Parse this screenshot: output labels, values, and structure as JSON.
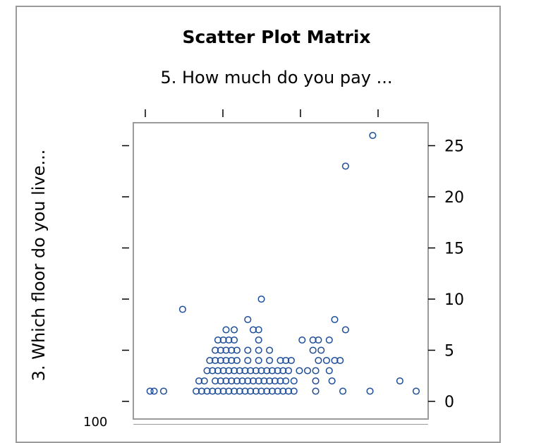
{
  "chart_data": {
    "type": "scatter",
    "title": "Scatter Plot Matrix",
    "x_variable_label": "5. How much do you pay ...",
    "y_variable_label": "3. Which floor do you live...",
    "ylim": [
      0,
      27
    ],
    "yticks": [
      0,
      5,
      10,
      15,
      20,
      25
    ],
    "xlim": [
      0,
      1
    ],
    "x_tick_count": 4,
    "clipped_tick_label": "100",
    "grid": false,
    "marker": "open-circle",
    "colors": {
      "marker": "#1f4e9a",
      "frame": "#9a9a9a"
    },
    "points": [
      {
        "x": 0.02,
        "y": 1
      },
      {
        "x": 0.035,
        "y": 1
      },
      {
        "x": 0.07,
        "y": 1
      },
      {
        "x": 0.14,
        "y": 9
      },
      {
        "x": 0.19,
        "y": 1
      },
      {
        "x": 0.21,
        "y": 1
      },
      {
        "x": 0.23,
        "y": 1
      },
      {
        "x": 0.25,
        "y": 1
      },
      {
        "x": 0.27,
        "y": 1
      },
      {
        "x": 0.29,
        "y": 1
      },
      {
        "x": 0.31,
        "y": 1
      },
      {
        "x": 0.33,
        "y": 1
      },
      {
        "x": 0.35,
        "y": 1
      },
      {
        "x": 0.37,
        "y": 1
      },
      {
        "x": 0.39,
        "y": 1
      },
      {
        "x": 0.41,
        "y": 1
      },
      {
        "x": 0.43,
        "y": 1
      },
      {
        "x": 0.45,
        "y": 1
      },
      {
        "x": 0.47,
        "y": 1
      },
      {
        "x": 0.49,
        "y": 1
      },
      {
        "x": 0.51,
        "y": 1
      },
      {
        "x": 0.53,
        "y": 1
      },
      {
        "x": 0.55,
        "y": 1
      },
      {
        "x": 0.2,
        "y": 2
      },
      {
        "x": 0.22,
        "y": 2
      },
      {
        "x": 0.26,
        "y": 2
      },
      {
        "x": 0.28,
        "y": 2
      },
      {
        "x": 0.3,
        "y": 2
      },
      {
        "x": 0.32,
        "y": 2
      },
      {
        "x": 0.34,
        "y": 2
      },
      {
        "x": 0.36,
        "y": 2
      },
      {
        "x": 0.38,
        "y": 2
      },
      {
        "x": 0.4,
        "y": 2
      },
      {
        "x": 0.42,
        "y": 2
      },
      {
        "x": 0.44,
        "y": 2
      },
      {
        "x": 0.46,
        "y": 2
      },
      {
        "x": 0.48,
        "y": 2
      },
      {
        "x": 0.5,
        "y": 2
      },
      {
        "x": 0.52,
        "y": 2
      },
      {
        "x": 0.55,
        "y": 2
      },
      {
        "x": 0.23,
        "y": 3
      },
      {
        "x": 0.25,
        "y": 3
      },
      {
        "x": 0.27,
        "y": 3
      },
      {
        "x": 0.29,
        "y": 3
      },
      {
        "x": 0.31,
        "y": 3
      },
      {
        "x": 0.33,
        "y": 3
      },
      {
        "x": 0.35,
        "y": 3
      },
      {
        "x": 0.37,
        "y": 3
      },
      {
        "x": 0.39,
        "y": 3
      },
      {
        "x": 0.41,
        "y": 3
      },
      {
        "x": 0.43,
        "y": 3
      },
      {
        "x": 0.45,
        "y": 3
      },
      {
        "x": 0.47,
        "y": 3
      },
      {
        "x": 0.49,
        "y": 3
      },
      {
        "x": 0.51,
        "y": 3
      },
      {
        "x": 0.53,
        "y": 3
      },
      {
        "x": 0.57,
        "y": 3
      },
      {
        "x": 0.6,
        "y": 3
      },
      {
        "x": 0.24,
        "y": 4
      },
      {
        "x": 0.26,
        "y": 4
      },
      {
        "x": 0.28,
        "y": 4
      },
      {
        "x": 0.3,
        "y": 4
      },
      {
        "x": 0.32,
        "y": 4
      },
      {
        "x": 0.34,
        "y": 4
      },
      {
        "x": 0.38,
        "y": 4
      },
      {
        "x": 0.42,
        "y": 4
      },
      {
        "x": 0.46,
        "y": 4
      },
      {
        "x": 0.5,
        "y": 4
      },
      {
        "x": 0.52,
        "y": 4
      },
      {
        "x": 0.54,
        "y": 4
      },
      {
        "x": 0.26,
        "y": 5
      },
      {
        "x": 0.28,
        "y": 5
      },
      {
        "x": 0.3,
        "y": 5
      },
      {
        "x": 0.32,
        "y": 5
      },
      {
        "x": 0.34,
        "y": 5
      },
      {
        "x": 0.38,
        "y": 5
      },
      {
        "x": 0.42,
        "y": 5
      },
      {
        "x": 0.46,
        "y": 5
      },
      {
        "x": 0.27,
        "y": 6
      },
      {
        "x": 0.29,
        "y": 6
      },
      {
        "x": 0.31,
        "y": 6
      },
      {
        "x": 0.33,
        "y": 6
      },
      {
        "x": 0.42,
        "y": 6
      },
      {
        "x": 0.3,
        "y": 7
      },
      {
        "x": 0.33,
        "y": 7
      },
      {
        "x": 0.4,
        "y": 7
      },
      {
        "x": 0.42,
        "y": 7
      },
      {
        "x": 0.38,
        "y": 8
      },
      {
        "x": 0.43,
        "y": 10
      },
      {
        "x": 0.58,
        "y": 6
      },
      {
        "x": 0.62,
        "y": 6
      },
      {
        "x": 0.64,
        "y": 6
      },
      {
        "x": 0.68,
        "y": 6
      },
      {
        "x": 0.62,
        "y": 5
      },
      {
        "x": 0.65,
        "y": 5
      },
      {
        "x": 0.64,
        "y": 4
      },
      {
        "x": 0.67,
        "y": 4
      },
      {
        "x": 0.7,
        "y": 4
      },
      {
        "x": 0.72,
        "y": 4
      },
      {
        "x": 0.63,
        "y": 3
      },
      {
        "x": 0.68,
        "y": 3
      },
      {
        "x": 0.63,
        "y": 2
      },
      {
        "x": 0.69,
        "y": 2
      },
      {
        "x": 0.63,
        "y": 1
      },
      {
        "x": 0.73,
        "y": 1
      },
      {
        "x": 0.7,
        "y": 8
      },
      {
        "x": 0.74,
        "y": 7
      },
      {
        "x": 0.74,
        "y": 23
      },
      {
        "x": 0.84,
        "y": 26
      },
      {
        "x": 0.83,
        "y": 1
      },
      {
        "x": 0.94,
        "y": 2
      },
      {
        "x": 1.0,
        "y": 1
      }
    ]
  }
}
